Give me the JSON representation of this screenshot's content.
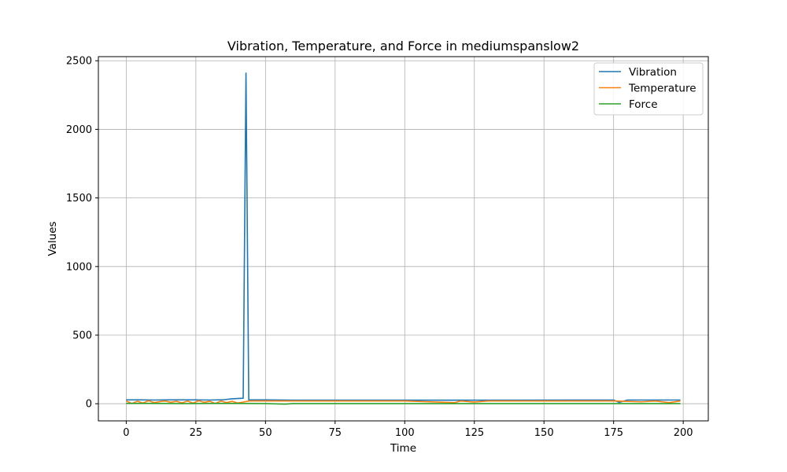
{
  "chart_data": {
    "type": "line",
    "title": "Vibration, Temperature, and Force in mediumspanslow2",
    "xlabel": "Time",
    "ylabel": "Values",
    "xlim": [
      -10,
      209
    ],
    "ylim": [
      -125,
      2530
    ],
    "xticks": [
      0,
      25,
      50,
      75,
      100,
      125,
      150,
      175,
      200
    ],
    "yticks": [
      0,
      500,
      1000,
      1500,
      2000,
      2500
    ],
    "grid": true,
    "legend_position": "top-right",
    "series": [
      {
        "name": "Vibration",
        "color": "#1f77b4",
        "x": [
          0,
          5,
          10,
          15,
          20,
          25,
          30,
          35,
          38,
          40,
          42,
          43,
          44,
          50,
          60,
          80,
          100,
          115,
          118,
          120,
          140,
          160,
          175,
          177,
          180,
          190,
          199
        ],
        "y": [
          28,
          28,
          27,
          28,
          28,
          28,
          27,
          29,
          36,
          38,
          40,
          2410,
          28,
          28,
          26,
          26,
          26,
          26,
          26,
          26,
          26,
          27,
          27,
          10,
          27,
          27,
          27
        ]
      },
      {
        "name": "Temperature",
        "color": "#ff7f0e",
        "x": [
          0,
          2,
          4,
          6,
          8,
          10,
          12,
          14,
          16,
          18,
          20,
          22,
          24,
          26,
          28,
          30,
          32,
          34,
          36,
          38,
          40,
          42,
          44,
          60,
          80,
          100,
          118,
          120,
          125,
          130,
          140,
          160,
          175,
          185,
          190,
          195,
          199
        ],
        "y": [
          20,
          2,
          18,
          5,
          22,
          8,
          15,
          20,
          10,
          18,
          6,
          20,
          4,
          22,
          10,
          18,
          2,
          20,
          8,
          18,
          5,
          12,
          20,
          20,
          20,
          20,
          8,
          20,
          12,
          20,
          20,
          20,
          20,
          14,
          20,
          8,
          20
        ]
      },
      {
        "name": "Force",
        "color": "#2ca02c",
        "x": [
          0,
          10,
          20,
          30,
          40,
          50,
          57,
          60,
          80,
          100,
          120,
          140,
          160,
          180,
          199
        ],
        "y": [
          2,
          2,
          1,
          2,
          2,
          1,
          -3,
          1,
          1,
          1,
          1,
          1,
          1,
          1,
          1
        ]
      }
    ]
  }
}
